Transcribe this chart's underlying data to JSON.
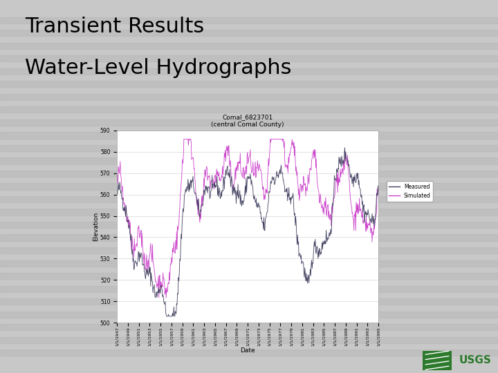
{
  "title_line1": "Transient Results",
  "title_line2": "Water-Level Hydrographs",
  "title_fontsize": 22,
  "title_color": "#000000",
  "slide_bg": "#c8c8c8",
  "stripe_color": "#b8b8b8",
  "green_bar_color": "#2d7a2d",
  "chart_title_line1": "Comal_6823701",
  "chart_title_line2": "(central Comal County)",
  "xlabel": "Date",
  "ylabel": "Elevation",
  "ylim": [
    500,
    590
  ],
  "yticks": [
    500,
    510,
    520,
    530,
    540,
    550,
    560,
    570,
    580,
    590
  ],
  "measured_color": "#404060",
  "simulated_color": "#cc44cc",
  "chart_bg": "#ffffff",
  "legend_measured": "Measured",
  "legend_simulated": "Simulated",
  "usgs_color": "#2d7a2d",
  "seed": 42,
  "n_points": 576,
  "x_start_year": 1947,
  "x_end_year": 1995
}
